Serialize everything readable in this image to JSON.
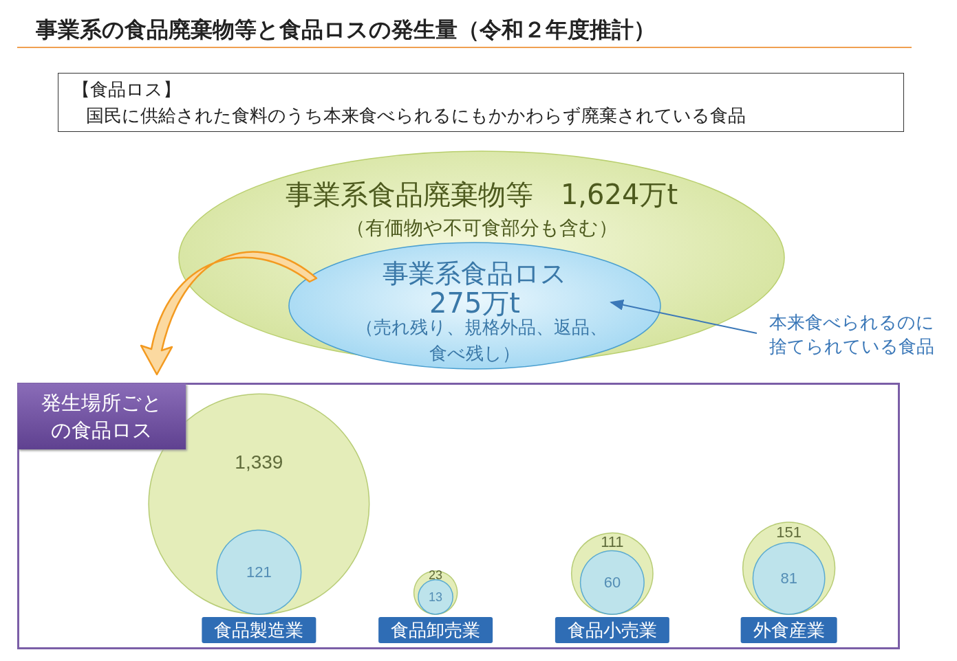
{
  "chart_data": {
    "type": "other",
    "title": "事業系の食品廃棄物等と食品ロスの発生量（令和２年度推計）",
    "subtitle": "発生場所ごとの食品ロス",
    "categories": [
      "食品製造業",
      "食品卸売業",
      "食品小売業",
      "外食産業"
    ],
    "series": [
      {
        "color": "#dde9a8",
        "values": [
          1339,
          23,
          111,
          151
        ],
        "value_labels": [
          "1,339",
          "23",
          "111",
          "151"
        ]
      },
      {
        "color": "#b3e0f7",
        "values": [
          121,
          13,
          60,
          81
        ],
        "value_labels": [
          "121",
          "13",
          "60",
          "81"
        ]
      }
    ],
    "annotations": [
      "【食品ロス】",
      "国民に供給された食料のうち本来食べられるにもかかわらず廃棄されている食品",
      "事業系食品廃棄物等　1,624万t",
      "（有価物や不可食部分も含む）",
      "事業系食品ロス",
      "275万t",
      "（売れ残り、規格外品、返品、",
      "食べ残し）",
      "本来食べられるのに",
      "捨てられている食品"
    ]
  }
}
